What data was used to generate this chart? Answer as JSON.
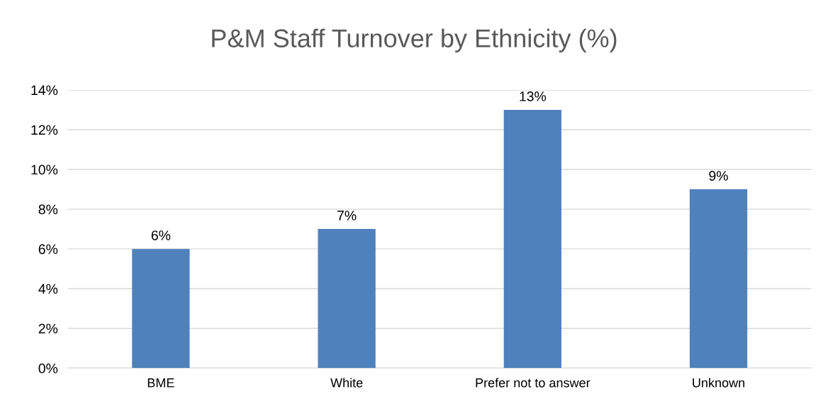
{
  "chart_data": {
    "type": "bar",
    "title": "P&M Staff Turnover by Ethnicity (%)",
    "categories": [
      "BME",
      "White",
      "Prefer not to answer",
      "Unknown"
    ],
    "values": [
      6,
      7,
      13,
      9
    ],
    "color": "#4f81bd",
    "value_labels": [
      "6%",
      "7%",
      "13%",
      "9%"
    ],
    "ylim": [
      0,
      14
    ],
    "yticks": [
      {
        "value": 0,
        "label": "0%"
      },
      {
        "value": 2,
        "label": "2%"
      },
      {
        "value": 4,
        "label": "4%"
      },
      {
        "value": 6,
        "label": "6%"
      },
      {
        "value": 8,
        "label": "8%"
      },
      {
        "value": 10,
        "label": "10%"
      },
      {
        "value": 12,
        "label": "12%"
      },
      {
        "value": 14,
        "label": "14%"
      }
    ],
    "grid": "y"
  }
}
